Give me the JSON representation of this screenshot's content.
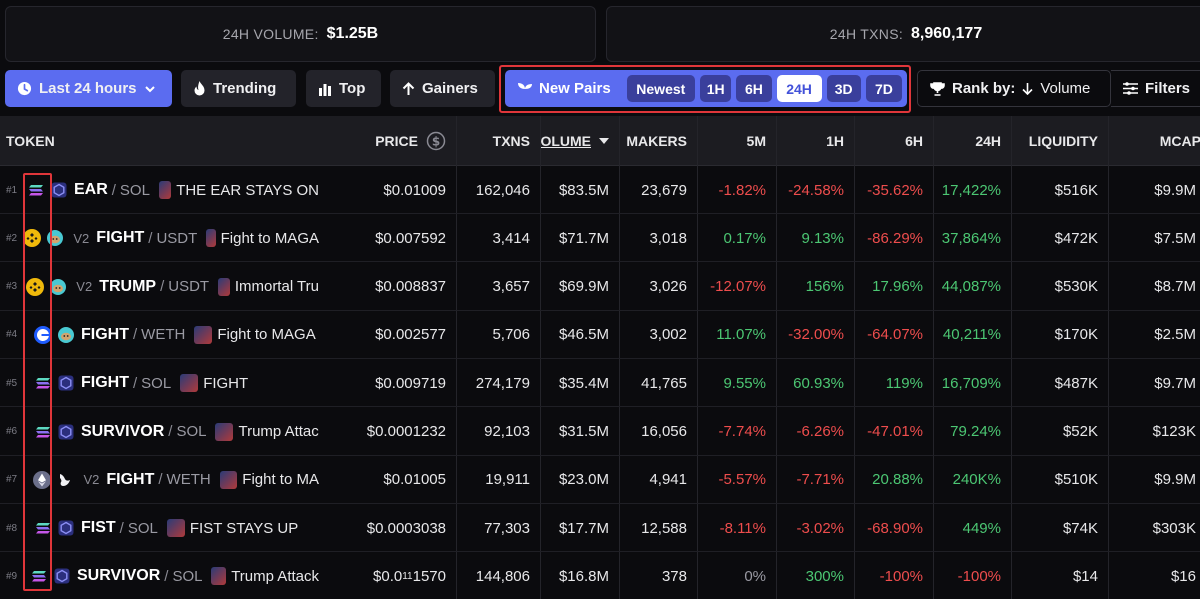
{
  "stats": {
    "volume_label": "24H VOLUME:",
    "volume_value": "$1.25B",
    "txns_label": "24H TXNS:",
    "txns_value": "8,960,177"
  },
  "toolbar": {
    "timeframe_label": "Last 24 hours",
    "trending_label": "Trending",
    "top_label": "Top",
    "gainers_label": "Gainers",
    "new_pairs_label": "New Pairs",
    "segments": [
      "Newest",
      "1H",
      "6H",
      "24H",
      "3D",
      "7D"
    ],
    "active_segment": "24H",
    "rank_label": "Rank by:",
    "rank_value": "Volume",
    "filters_label": "Filters"
  },
  "table": {
    "headers": {
      "token": "TOKEN",
      "price": "PRICE",
      "txns": "TXNS",
      "volume": "OLUME",
      "makers": "MAKERS",
      "m5": "5M",
      "h1": "1H",
      "h6": "6H",
      "h24": "24H",
      "liquidity": "LIQUIDITY",
      "mcap": "MCAP"
    },
    "rows": [
      {
        "rank": "#1",
        "chain": "solana",
        "dex": "raydium",
        "version": "",
        "base": "EAR",
        "quote": "SOL",
        "name": "THE EAR STAYS ON",
        "price": "$0.01009",
        "price_sub": "",
        "price_tail": "",
        "txns": "162,046",
        "volume": "$83.5M",
        "makers": "23,679",
        "m5": "-1.82%",
        "h1": "-24.58%",
        "h6": "-35.62%",
        "h24": "17,422%",
        "liquidity": "$516K",
        "mcap": "$9.9M"
      },
      {
        "rank": "#2",
        "chain": "bnb",
        "dex": "pancakeswap",
        "version": "V2",
        "base": "FIGHT",
        "quote": "USDT",
        "name": "Fight to MAGA",
        "price": "$0.007592",
        "price_sub": "",
        "price_tail": "",
        "txns": "3,414",
        "volume": "$71.7M",
        "makers": "3,018",
        "m5": "0.17%",
        "h1": "9.13%",
        "h6": "-86.29%",
        "h24": "37,864%",
        "liquidity": "$472K",
        "mcap": "$7.5M"
      },
      {
        "rank": "#3",
        "chain": "bnb",
        "dex": "pancakeswap",
        "version": "V2",
        "base": "TRUMP",
        "quote": "USDT",
        "name": "Immortal Tru",
        "price": "$0.008837",
        "price_sub": "",
        "price_tail": "",
        "txns": "3,657",
        "volume": "$69.9M",
        "makers": "3,026",
        "m5": "-12.07%",
        "h1": "156%",
        "h6": "17.96%",
        "h24": "44,087%",
        "liquidity": "$530K",
        "mcap": "$8.7M"
      },
      {
        "rank": "#4",
        "chain": "base",
        "dex": "pancakeswap",
        "version": "",
        "base": "FIGHT",
        "quote": "WETH",
        "name": "Fight to MAGA",
        "price": "$0.002577",
        "price_sub": "",
        "price_tail": "",
        "txns": "5,706",
        "volume": "$46.5M",
        "makers": "3,002",
        "m5": "11.07%",
        "h1": "-32.00%",
        "h6": "-64.07%",
        "h24": "40,211%",
        "liquidity": "$170K",
        "mcap": "$2.5M"
      },
      {
        "rank": "#5",
        "chain": "solana",
        "dex": "raydium",
        "version": "",
        "base": "FIGHT",
        "quote": "SOL",
        "name": "FIGHT",
        "price": "$0.009719",
        "price_sub": "",
        "price_tail": "",
        "txns": "274,179",
        "volume": "$35.4M",
        "makers": "41,765",
        "m5": "9.55%",
        "h1": "60.93%",
        "h6": "119%",
        "h24": "16,709%",
        "liquidity": "$487K",
        "mcap": "$9.7M"
      },
      {
        "rank": "#6",
        "chain": "solana",
        "dex": "raydium",
        "version": "",
        "base": "SURVIVOR",
        "quote": "SOL",
        "name": "Trump Attac",
        "price": "$0.0001232",
        "price_sub": "",
        "price_tail": "",
        "txns": "92,103",
        "volume": "$31.5M",
        "makers": "16,056",
        "m5": "-7.74%",
        "h1": "-6.26%",
        "h6": "-47.01%",
        "h24": "79.24%",
        "liquidity": "$52K",
        "mcap": "$123K"
      },
      {
        "rank": "#7",
        "chain": "ethereum",
        "dex": "uniswap",
        "version": "V2",
        "base": "FIGHT",
        "quote": "WETH",
        "name": "Fight to MA",
        "price": "$0.01005",
        "price_sub": "",
        "price_tail": "",
        "txns": "19,911",
        "volume": "$23.0M",
        "makers": "4,941",
        "m5": "-5.57%",
        "h1": "-7.71%",
        "h6": "20.88%",
        "h24": "240K%",
        "liquidity": "$510K",
        "mcap": "$9.9M"
      },
      {
        "rank": "#8",
        "chain": "solana",
        "dex": "raydium",
        "version": "",
        "base": "FIST",
        "quote": "SOL",
        "name": "FIST STAYS UP",
        "price": "$0.0003038",
        "price_sub": "",
        "price_tail": "",
        "txns": "77,303",
        "volume": "$17.7M",
        "makers": "12,588",
        "m5": "-8.11%",
        "h1": "-3.02%",
        "h6": "-68.90%",
        "h24": "449%",
        "liquidity": "$74K",
        "mcap": "$303K"
      },
      {
        "rank": "#9",
        "chain": "solana",
        "dex": "raydium",
        "version": "",
        "base": "SURVIVOR",
        "quote": "SOL",
        "name": "Trump Attack",
        "price": "$0.0",
        "price_sub": "11",
        "price_tail": "1570",
        "txns": "144,806",
        "volume": "$16.8M",
        "makers": "378",
        "m5": "0%",
        "h1": "300%",
        "h6": "-100%",
        "h24": "-100%",
        "liquidity": "$14",
        "mcap": "$16"
      }
    ]
  },
  "colors": {
    "accent": "#5b6cf0",
    "positive": "#4cc773",
    "negative": "#ee4d4d",
    "highlight_outline": "#e0363a"
  }
}
